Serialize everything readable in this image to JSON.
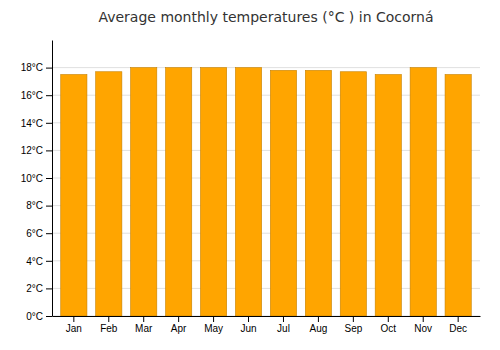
{
  "chart_data": {
    "type": "bar",
    "title": "Average monthly temperatures (°C ) in Cocorná",
    "categories": [
      "Jan",
      "Feb",
      "Mar",
      "Apr",
      "May",
      "Jun",
      "Jul",
      "Aug",
      "Sep",
      "Oct",
      "Nov",
      "Dec"
    ],
    "values": [
      17.5,
      17.7,
      18.0,
      18.0,
      18.0,
      18.0,
      17.8,
      17.8,
      17.7,
      17.5,
      18.0,
      17.5
    ],
    "color": "#FFA500",
    "ylim": [
      0,
      20
    ],
    "yticks": [
      {
        "value": 0,
        "label": "0°C"
      },
      {
        "value": 2,
        "label": "2°C"
      },
      {
        "value": 4,
        "label": "4°C"
      },
      {
        "value": 6,
        "label": "6°C"
      },
      {
        "value": 8,
        "label": "8°C"
      },
      {
        "value": 10,
        "label": "10°C"
      },
      {
        "value": 12,
        "label": "12°C"
      },
      {
        "value": 14,
        "label": "14°C"
      },
      {
        "value": 16,
        "label": "16°C"
      },
      {
        "value": 18,
        "label": "18°C"
      }
    ],
    "grid": true
  }
}
